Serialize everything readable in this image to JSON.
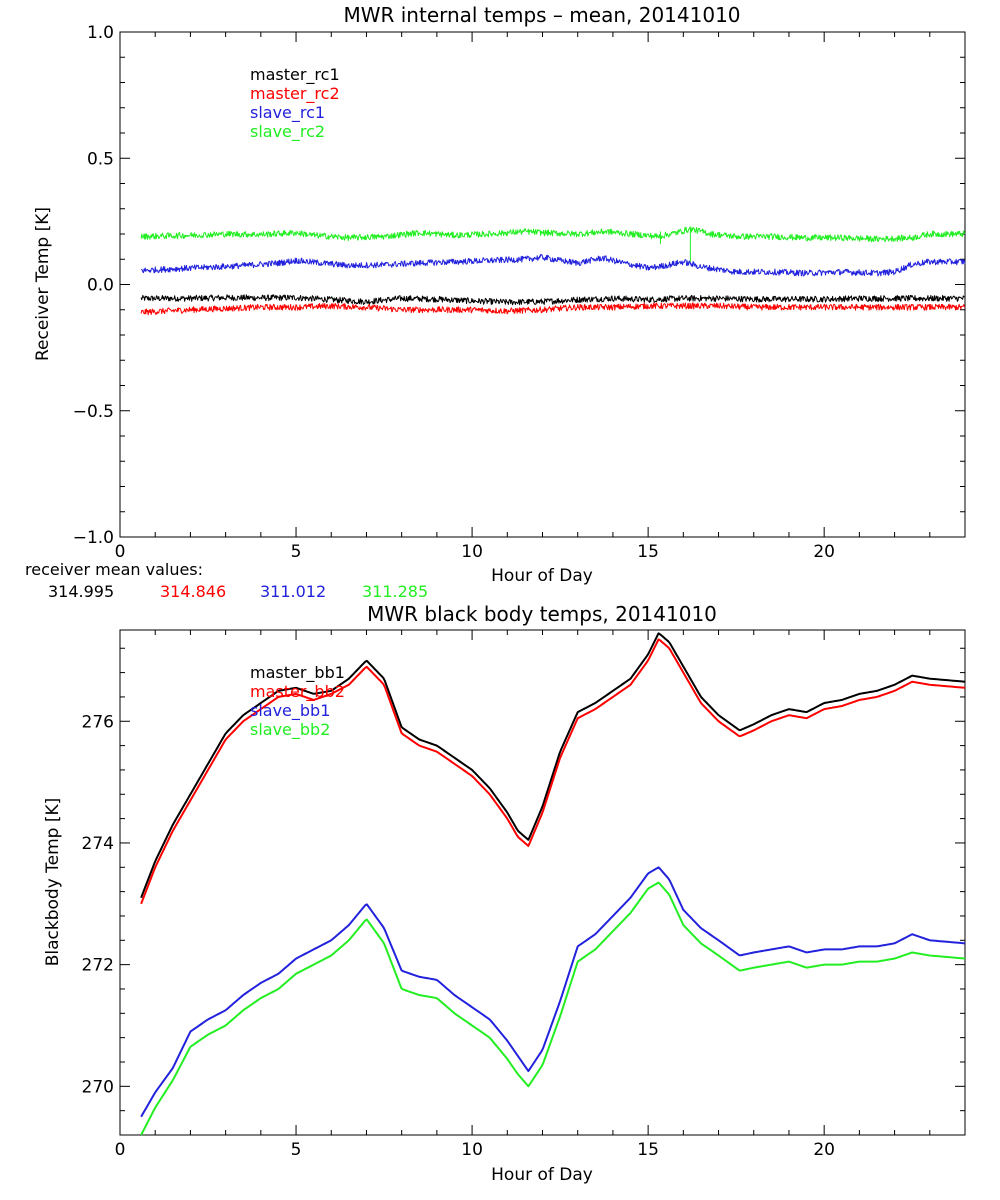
{
  "colors": {
    "master_rc1": "#000000",
    "master_rc2": "#ff0000",
    "slave_rc1": "#2222dd",
    "slave_rc2": "#22ee22",
    "master_bb1": "#000000",
    "master_bb2": "#ff0000",
    "slave_bb1": "#2222dd",
    "slave_bb2": "#22ee22"
  },
  "means": {
    "label": "receiver mean values:",
    "values": [
      "314.995",
      "314.846",
      "311.012",
      "311.285"
    ]
  },
  "chart_data": [
    {
      "type": "line",
      "title": "MWR internal temps – mean, 20141010",
      "xlabel": "Hour of Day",
      "ylabel": "Receiver Temp [K]",
      "xlim": [
        0,
        24
      ],
      "ylim": [
        -1.0,
        1.0
      ],
      "xticks": [
        0,
        5,
        10,
        15,
        20
      ],
      "xtick_labels": [
        "0",
        "5",
        "10",
        "15",
        "20"
      ],
      "yticks": [
        -1.0,
        -0.5,
        0.0,
        0.5,
        1.0
      ],
      "ytick_labels": [
        "−1.0",
        "−0.5",
        "0.0",
        "0.5",
        "1.0"
      ],
      "legend_position": "top-left",
      "noise": 0.012,
      "series": [
        {
          "name": "master_rc1",
          "x": [
            0.6,
            2,
            3,
            4,
            5,
            6,
            7,
            8,
            9,
            10,
            11,
            12,
            13,
            14,
            15,
            16,
            17,
            18,
            19,
            20,
            21,
            22,
            23,
            24
          ],
          "y": [
            -0.055,
            -0.055,
            -0.052,
            -0.053,
            -0.052,
            -0.06,
            -0.068,
            -0.055,
            -0.058,
            -0.065,
            -0.07,
            -0.068,
            -0.06,
            -0.055,
            -0.06,
            -0.055,
            -0.055,
            -0.058,
            -0.058,
            -0.058,
            -0.055,
            -0.055,
            -0.055,
            -0.055
          ]
        },
        {
          "name": "master_rc2",
          "x": [
            0.6,
            2,
            3,
            4,
            5,
            6,
            7,
            8,
            9,
            10,
            11,
            12,
            13,
            14,
            15,
            16,
            17,
            18,
            19,
            20,
            21,
            22,
            23,
            24
          ],
          "y": [
            -0.11,
            -0.1,
            -0.095,
            -0.09,
            -0.09,
            -0.085,
            -0.09,
            -0.1,
            -0.1,
            -0.1,
            -0.105,
            -0.1,
            -0.09,
            -0.09,
            -0.085,
            -0.085,
            -0.085,
            -0.09,
            -0.09,
            -0.09,
            -0.09,
            -0.09,
            -0.09,
            -0.09
          ]
        },
        {
          "name": "slave_rc1",
          "x": [
            0.6,
            1.5,
            2.5,
            3.5,
            4.5,
            5,
            5.5,
            6.5,
            7.5,
            8.5,
            9.5,
            10.5,
            11.5,
            12,
            12.5,
            13,
            13.7,
            14.3,
            15,
            15.5,
            16,
            16.5,
            17,
            17.5,
            18.5,
            19.5,
            20.5,
            21.5,
            22,
            22.5,
            23,
            24
          ],
          "y": [
            0.055,
            0.062,
            0.068,
            0.075,
            0.085,
            0.095,
            0.088,
            0.075,
            0.078,
            0.085,
            0.09,
            0.095,
            0.1,
            0.108,
            0.095,
            0.085,
            0.105,
            0.085,
            0.065,
            0.075,
            0.09,
            0.07,
            0.06,
            0.05,
            0.05,
            0.045,
            0.05,
            0.045,
            0.05,
            0.08,
            0.09,
            0.09
          ]
        },
        {
          "name": "slave_rc2",
          "x": [
            0.6,
            2,
            3,
            4,
            5,
            5.5,
            6.5,
            7.5,
            8.5,
            9.5,
            10.5,
            11.5,
            12,
            13,
            13.8,
            14.5,
            15.3,
            15.8,
            16.2,
            16.8,
            17.5,
            18.5,
            19.5,
            20.5,
            21.5,
            22.5,
            23,
            24
          ],
          "y": [
            0.19,
            0.195,
            0.2,
            0.198,
            0.205,
            0.195,
            0.185,
            0.19,
            0.205,
            0.195,
            0.2,
            0.21,
            0.205,
            0.2,
            0.21,
            0.2,
            0.19,
            0.205,
            0.22,
            0.2,
            0.19,
            0.19,
            0.185,
            0.185,
            0.18,
            0.185,
            0.2,
            0.2
          ]
        }
      ]
    },
    {
      "type": "line",
      "title": "MWR black body temps, 20141010",
      "xlabel": "Hour of Day",
      "ylabel": "Blackbody Temp [K]",
      "xlim": [
        0,
        24
      ],
      "ylim": [
        269.2,
        277.5
      ],
      "xticks": [
        0,
        5,
        10,
        15,
        20
      ],
      "xtick_labels": [
        "0",
        "5",
        "10",
        "15",
        "20"
      ],
      "yticks": [
        270,
        272,
        274,
        276
      ],
      "ytick_labels": [
        "270",
        "272",
        "274",
        "276"
      ],
      "legend_position": "top-left",
      "series": [
        {
          "name": "master_bb1",
          "x": [
            0.6,
            1,
            1.5,
            2,
            2.5,
            3,
            3.5,
            4,
            4.5,
            5,
            5.5,
            6,
            6.5,
            7,
            7.5,
            8,
            8.5,
            9,
            9.5,
            10,
            10.5,
            11,
            11.3,
            11.6,
            12,
            12.5,
            13,
            13.5,
            14,
            14.5,
            15,
            15.3,
            15.6,
            16,
            16.5,
            17,
            17.6,
            18,
            18.5,
            19,
            19.5,
            20,
            20.5,
            21,
            21.5,
            22,
            22.5,
            23,
            24
          ],
          "y": [
            273.1,
            273.7,
            274.3,
            274.8,
            275.3,
            275.8,
            276.1,
            276.3,
            276.5,
            276.55,
            276.45,
            276.5,
            276.7,
            277.0,
            276.7,
            275.9,
            275.7,
            275.6,
            275.4,
            275.2,
            274.9,
            274.5,
            274.2,
            274.05,
            274.6,
            275.5,
            276.15,
            276.3,
            276.5,
            276.7,
            277.1,
            277.45,
            277.3,
            276.9,
            276.4,
            276.1,
            275.85,
            275.95,
            276.1,
            276.2,
            276.15,
            276.3,
            276.35,
            276.45,
            276.5,
            276.6,
            276.75,
            276.7,
            276.65
          ]
        },
        {
          "name": "master_bb2",
          "x": [
            0.6,
            1,
            1.5,
            2,
            2.5,
            3,
            3.5,
            4,
            4.5,
            5,
            5.5,
            6,
            6.5,
            7,
            7.5,
            8,
            8.5,
            9,
            9.5,
            10,
            10.5,
            11,
            11.3,
            11.6,
            12,
            12.5,
            13,
            13.5,
            14,
            14.5,
            15,
            15.3,
            15.6,
            16,
            16.5,
            17,
            17.6,
            18,
            18.5,
            19,
            19.5,
            20,
            20.5,
            21,
            21.5,
            22,
            22.5,
            23,
            24
          ],
          "y": [
            273.0,
            273.6,
            274.2,
            274.7,
            275.2,
            275.7,
            276.0,
            276.2,
            276.4,
            276.45,
            276.35,
            276.45,
            276.6,
            276.9,
            276.6,
            275.8,
            275.6,
            275.5,
            275.3,
            275.1,
            274.8,
            274.4,
            274.1,
            273.95,
            274.5,
            275.4,
            276.05,
            276.2,
            276.4,
            276.6,
            277.0,
            277.35,
            277.2,
            276.8,
            276.3,
            276.0,
            275.75,
            275.85,
            276.0,
            276.1,
            276.05,
            276.2,
            276.25,
            276.35,
            276.4,
            276.5,
            276.65,
            276.6,
            276.55
          ]
        },
        {
          "name": "slave_bb1",
          "x": [
            0.6,
            1,
            1.5,
            2,
            2.5,
            3,
            3.5,
            4,
            4.5,
            5,
            5.5,
            6,
            6.5,
            7,
            7.5,
            8,
            8.5,
            9,
            9.5,
            10,
            10.5,
            11,
            11.3,
            11.6,
            12,
            12.5,
            13,
            13.5,
            14,
            14.5,
            15,
            15.3,
            15.6,
            16,
            16.5,
            17,
            17.6,
            18,
            18.5,
            19,
            19.5,
            20,
            20.5,
            21,
            21.5,
            22,
            22.5,
            23,
            24
          ],
          "y": [
            269.5,
            269.9,
            270.3,
            270.9,
            271.1,
            271.25,
            271.5,
            271.7,
            271.85,
            272.1,
            272.25,
            272.4,
            272.65,
            273.0,
            272.6,
            271.9,
            271.8,
            271.75,
            271.5,
            271.3,
            271.1,
            270.75,
            270.5,
            270.25,
            270.6,
            271.4,
            272.3,
            272.5,
            272.8,
            273.1,
            273.5,
            273.6,
            273.4,
            272.9,
            272.6,
            272.4,
            272.15,
            272.2,
            272.25,
            272.3,
            272.2,
            272.25,
            272.25,
            272.3,
            272.3,
            272.35,
            272.5,
            272.4,
            272.35
          ]
        },
        {
          "name": "slave_bb2",
          "x": [
            0.6,
            1,
            1.5,
            2,
            2.5,
            3,
            3.5,
            4,
            4.5,
            5,
            5.5,
            6,
            6.5,
            7,
            7.5,
            8,
            8.5,
            9,
            9.5,
            10,
            10.5,
            11,
            11.3,
            11.6,
            12,
            12.5,
            13,
            13.5,
            14,
            14.5,
            15,
            15.3,
            15.6,
            16,
            16.5,
            17,
            17.6,
            18,
            18.5,
            19,
            19.5,
            20,
            20.5,
            21,
            21.5,
            22,
            22.5,
            23,
            24
          ],
          "y": [
            269.2,
            269.65,
            270.1,
            270.65,
            270.85,
            271.0,
            271.25,
            271.45,
            271.6,
            271.85,
            272.0,
            272.15,
            272.4,
            272.75,
            272.35,
            271.6,
            271.5,
            271.45,
            271.2,
            271.0,
            270.8,
            270.45,
            270.2,
            270.0,
            270.35,
            271.15,
            272.05,
            272.25,
            272.55,
            272.85,
            273.25,
            273.35,
            273.15,
            272.65,
            272.35,
            272.15,
            271.9,
            271.95,
            272.0,
            272.05,
            271.95,
            272.0,
            272.0,
            272.05,
            272.05,
            272.1,
            272.2,
            272.15,
            272.1
          ]
        }
      ]
    }
  ]
}
